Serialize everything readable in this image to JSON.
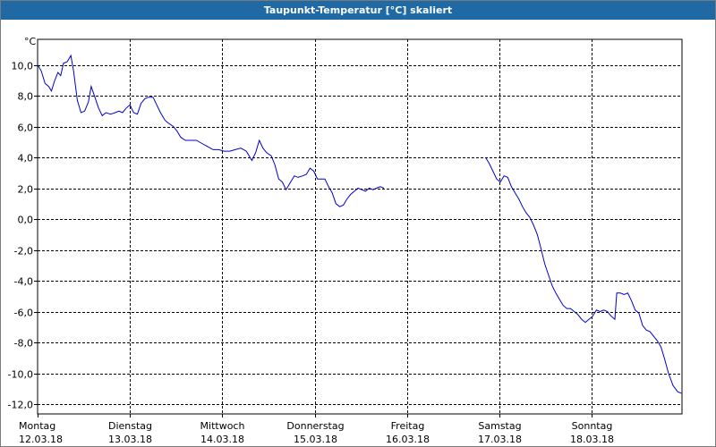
{
  "window": {
    "title": "Taupunkt-Temperatur [°C] skaliert"
  },
  "chart_data": {
    "type": "line",
    "title": "Taupunkt-Temperatur [°C] skaliert",
    "ylabel": "°C",
    "ylim": [
      -13,
      12.5
    ],
    "yticks": [
      {
        "value": 10,
        "label": "10,0"
      },
      {
        "value": 8,
        "label": "8,0"
      },
      {
        "value": 6,
        "label": "6,0"
      },
      {
        "value": 4,
        "label": "4,0"
      },
      {
        "value": 2,
        "label": "2,0"
      },
      {
        "value": 0,
        "label": "0,0"
      },
      {
        "value": -2,
        "label": "-2,0"
      },
      {
        "value": -4,
        "label": "-4,0"
      },
      {
        "value": -6,
        "label": "-6,0"
      },
      {
        "value": -8,
        "label": "-8,0"
      },
      {
        "value": -10,
        "label": "-10,0"
      },
      {
        "value": -12,
        "label": "-12,0"
      }
    ],
    "xlim": [
      0,
      7
    ],
    "xticks": [
      {
        "value": 0,
        "day": "Montag",
        "date": "12.03.18"
      },
      {
        "value": 1,
        "day": "Dienstag",
        "date": "13.03.18"
      },
      {
        "value": 2,
        "day": "Mittwoch",
        "date": "14.03.18"
      },
      {
        "value": 3,
        "day": "Donnerstag",
        "date": "15.03.18"
      },
      {
        "value": 4,
        "day": "Freitag",
        "date": "16.03.18"
      },
      {
        "value": 5,
        "day": "Samstag",
        "date": "17.03.18"
      },
      {
        "value": 6,
        "day": "Sonntag",
        "date": "18.03.18"
      }
    ],
    "grid": true,
    "line_color": "#0000cc",
    "series": [
      {
        "segments": [
          [
            [
              0.0,
              10.0
            ],
            [
              0.04,
              9.6
            ],
            [
              0.08,
              8.8
            ],
            [
              0.12,
              8.6
            ],
            [
              0.15,
              8.3
            ],
            [
              0.18,
              8.9
            ],
            [
              0.22,
              9.5
            ],
            [
              0.25,
              9.3
            ],
            [
              0.28,
              10.1
            ],
            [
              0.32,
              10.2
            ],
            [
              0.36,
              10.6
            ],
            [
              0.39,
              9.6
            ],
            [
              0.43,
              7.7
            ],
            [
              0.47,
              6.9
            ],
            [
              0.51,
              7.0
            ],
            [
              0.55,
              7.6
            ],
            [
              0.58,
              8.6
            ],
            [
              0.62,
              7.9
            ],
            [
              0.66,
              7.2
            ],
            [
              0.7,
              6.7
            ],
            [
              0.74,
              6.9
            ],
            [
              0.79,
              6.8
            ],
            [
              0.84,
              6.9
            ],
            [
              0.88,
              7.0
            ],
            [
              0.92,
              6.9
            ],
            [
              0.96,
              7.2
            ],
            [
              1.0,
              7.4
            ],
            [
              1.04,
              6.9
            ],
            [
              1.08,
              6.8
            ],
            [
              1.12,
              7.5
            ],
            [
              1.16,
              7.8
            ],
            [
              1.2,
              7.9
            ],
            [
              1.25,
              7.9
            ],
            [
              1.29,
              7.4
            ],
            [
              1.33,
              6.9
            ],
            [
              1.38,
              6.4
            ],
            [
              1.42,
              6.2
            ],
            [
              1.47,
              6.0
            ],
            [
              1.51,
              5.7
            ],
            [
              1.55,
              5.3
            ],
            [
              1.6,
              5.1
            ],
            [
              1.66,
              5.1
            ],
            [
              1.72,
              5.1
            ],
            [
              1.78,
              4.9
            ],
            [
              1.84,
              4.7
            ],
            [
              1.9,
              4.5
            ],
            [
              1.96,
              4.5
            ],
            [
              2.02,
              4.4
            ],
            [
              2.08,
              4.4
            ],
            [
              2.14,
              4.5
            ],
            [
              2.2,
              4.6
            ],
            [
              2.26,
              4.4
            ],
            [
              2.32,
              3.8
            ],
            [
              2.36,
              4.3
            ],
            [
              2.4,
              5.1
            ],
            [
              2.44,
              4.6
            ],
            [
              2.48,
              4.3
            ],
            [
              2.53,
              4.1
            ],
            [
              2.57,
              3.5
            ],
            [
              2.61,
              2.6
            ],
            [
              2.65,
              2.4
            ],
            [
              2.69,
              1.9
            ],
            [
              2.73,
              2.3
            ],
            [
              2.78,
              2.8
            ],
            [
              2.82,
              2.7
            ],
            [
              2.87,
              2.8
            ],
            [
              2.91,
              2.9
            ],
            [
              2.95,
              3.3
            ],
            [
              2.99,
              3.1
            ],
            [
              3.03,
              2.6
            ],
            [
              3.07,
              2.6
            ],
            [
              3.11,
              2.6
            ],
            [
              3.15,
              2.1
            ],
            [
              3.19,
              1.7
            ],
            [
              3.23,
              1.0
            ],
            [
              3.27,
              0.8
            ],
            [
              3.31,
              0.9
            ],
            [
              3.35,
              1.3
            ],
            [
              3.39,
              1.6
            ],
            [
              3.43,
              1.8
            ],
            [
              3.47,
              2.0
            ],
            [
              3.51,
              1.9
            ],
            [
              3.55,
              1.8
            ],
            [
              3.59,
              2.0
            ],
            [
              3.63,
              1.9
            ],
            [
              3.67,
              2.0
            ],
            [
              3.71,
              2.1
            ],
            [
              3.75,
              2.0
            ]
          ],
          [
            [
              4.85,
              4.0
            ],
            [
              4.89,
              3.6
            ],
            [
              4.93,
              3.1
            ],
            [
              4.97,
              2.6
            ],
            [
              5.01,
              2.4
            ],
            [
              5.05,
              2.8
            ],
            [
              5.09,
              2.7
            ],
            [
              5.13,
              2.1
            ],
            [
              5.17,
              1.7
            ],
            [
              5.21,
              1.3
            ],
            [
              5.25,
              0.8
            ],
            [
              5.29,
              0.4
            ],
            [
              5.33,
              0.1
            ],
            [
              5.37,
              -0.4
            ],
            [
              5.41,
              -1.0
            ],
            [
              5.45,
              -1.9
            ],
            [
              5.49,
              -2.9
            ],
            [
              5.53,
              -3.6
            ],
            [
              5.57,
              -4.3
            ],
            [
              5.61,
              -4.8
            ],
            [
              5.65,
              -5.2
            ],
            [
              5.69,
              -5.6
            ],
            [
              5.73,
              -5.8
            ],
            [
              5.77,
              -5.8
            ],
            [
              5.81,
              -6.0
            ],
            [
              5.85,
              -6.2
            ],
            [
              5.89,
              -6.5
            ],
            [
              5.93,
              -6.7
            ],
            [
              5.97,
              -6.5
            ],
            [
              6.01,
              -6.3
            ],
            [
              6.05,
              -5.9
            ],
            [
              6.09,
              -6.0
            ],
            [
              6.13,
              -5.9
            ],
            [
              6.17,
              -6.0
            ],
            [
              6.21,
              -6.3
            ],
            [
              6.25,
              -6.5
            ],
            [
              6.27,
              -4.8
            ],
            [
              6.31,
              -4.8
            ],
            [
              6.35,
              -4.9
            ],
            [
              6.39,
              -4.8
            ],
            [
              6.43,
              -5.3
            ],
            [
              6.47,
              -5.9
            ],
            [
              6.51,
              -6.1
            ],
            [
              6.55,
              -6.9
            ],
            [
              6.59,
              -7.2
            ],
            [
              6.63,
              -7.3
            ],
            [
              6.67,
              -7.6
            ],
            [
              6.71,
              -7.9
            ],
            [
              6.75,
              -8.3
            ],
            [
              6.79,
              -9.1
            ],
            [
              6.83,
              -10.0
            ],
            [
              6.88,
              -10.8
            ],
            [
              6.93,
              -11.2
            ],
            [
              6.97,
              -11.3
            ]
          ]
        ]
      }
    ]
  }
}
